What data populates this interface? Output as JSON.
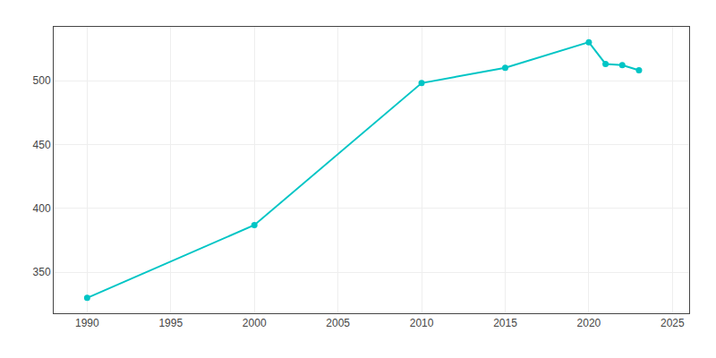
{
  "chart_data": {
    "type": "line",
    "x": [
      1990,
      2000,
      2010,
      2015,
      2020,
      2021,
      2022,
      2023
    ],
    "values": [
      330,
      387,
      498,
      510,
      530,
      513,
      512,
      508
    ],
    "color": "#00C5C5",
    "marker": "circle",
    "xlim": [
      1988,
      2026
    ],
    "ylim": [
      318,
      542
    ],
    "xticks": [
      1990,
      1995,
      2000,
      2005,
      2010,
      2015,
      2020,
      2025
    ],
    "yticks": [
      350,
      400,
      450,
      500
    ],
    "grid": true
  }
}
